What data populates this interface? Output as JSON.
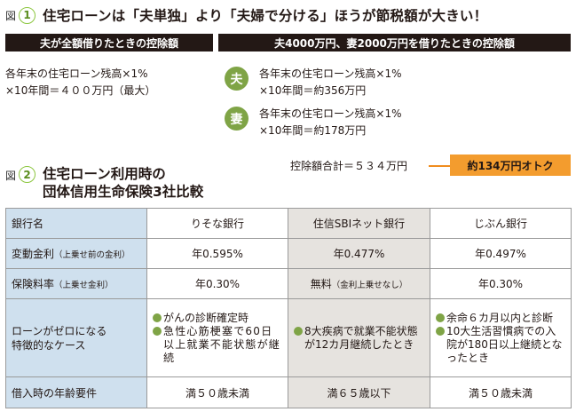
{
  "fig1": {
    "label": "図",
    "num": "1",
    "title": "住宅ローンは「夫単独」より「夫婦で分ける」ほうが節税額が大きい！",
    "left_header": "夫が全額借りたときの控除額",
    "right_header": "夫4000万円、妻2000万円を借りたときの控除額",
    "single_line1": "各年末の住宅ローン残高×1%",
    "single_line2": "×10年間＝４００万円（最大）",
    "husband_icon": "夫",
    "husband_line1": "各年末の住宅ローン残高×1%",
    "husband_line2": "×10年間＝約356万円",
    "wife_icon": "妻",
    "wife_line1": "各年末の住宅ローン残高×1%",
    "wife_line2": "×10年間＝約178万円",
    "total": "控除額合計＝５３４万円",
    "savings": "約134万円オトク"
  },
  "fig2": {
    "label": "図",
    "num": "2",
    "title_line1": "住宅ローン利用時の",
    "title_line2": "団体信用生命保険3社比較"
  },
  "table": {
    "headers": [
      "銀行名",
      "りそな銀行",
      "住信SBIネット銀行",
      "じぶん銀行"
    ],
    "rows": {
      "rate": {
        "label": "変動金利",
        "label_note": "（上乗せ前の金利）",
        "values": [
          "年0.595%",
          "年0.477%",
          "年0.497%"
        ]
      },
      "premium": {
        "label": "保険料率",
        "label_note": "（上乗せ金利）",
        "values": [
          "年0.30%",
          "無料",
          "年0.30%"
        ],
        "sbi_note": "（金利上乗せなし）"
      },
      "case": {
        "label_line1": "ローンがゼロになる",
        "label_line2": "特徴的なケース",
        "resona": [
          "がんの診断確定時",
          "急性心筋梗塞で60日以上就業不能状態が継続"
        ],
        "sbi": [
          "8大疾病で就業不能状態が12カ月継続したとき"
        ],
        "jibun": [
          "余命６カ月以内と診断",
          "10大生活習慣病での入院が180日以上継続となったとき"
        ]
      },
      "age": {
        "label": "借入時の年齢要件",
        "values": [
          "満５０歳未満",
          "満６５歳以下",
          "満５０歳未満"
        ]
      }
    }
  },
  "colors": {
    "green": "#7fa446",
    "orange": "#f39c2e",
    "header_blue": "#cfe0ee",
    "sbi_gray": "#e6e3df",
    "black_bar": "#231815"
  }
}
